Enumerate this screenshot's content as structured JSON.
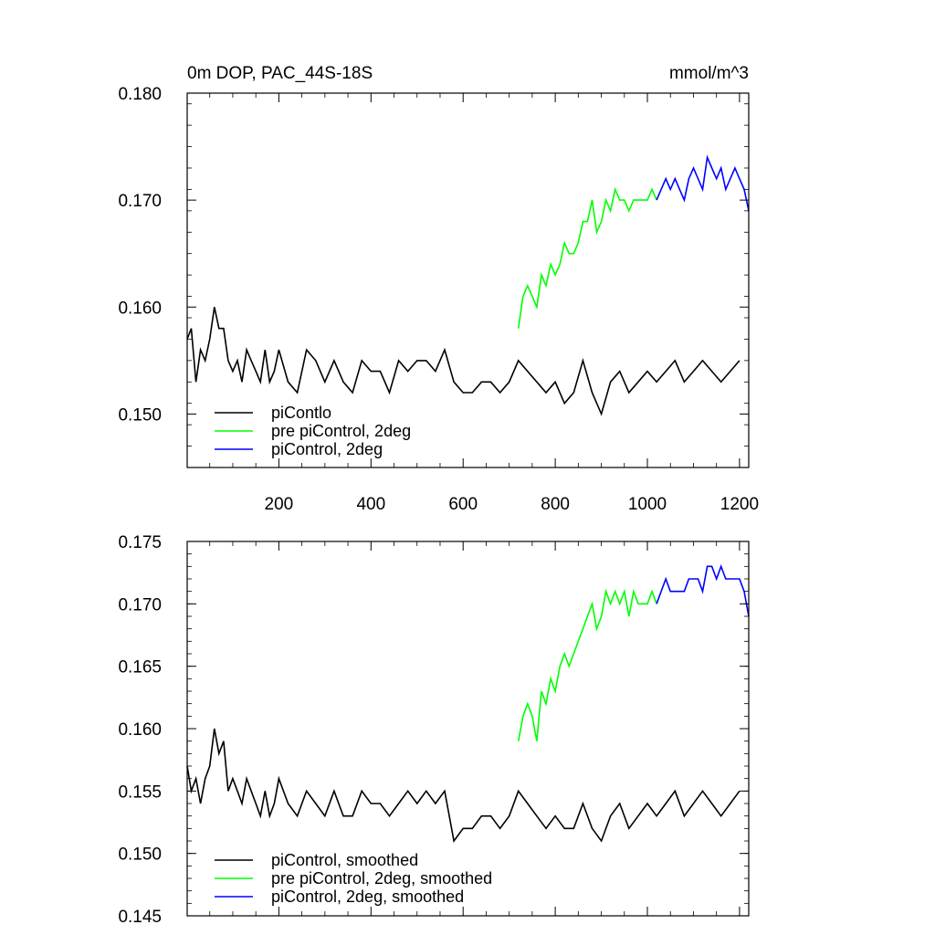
{
  "page": {
    "title_left": "0m DOP, PAC_44S-18S",
    "title_right": "mmol/m^3"
  },
  "colors": {
    "piControl": "#000000",
    "pre": "#00ff00",
    "twodeg": "#0000ff"
  },
  "chart_data": [
    {
      "type": "line",
      "title": "0m DOP, PAC_44S-18S",
      "units": "mmol/m^3",
      "xlim": [
        1,
        1220
      ],
      "ylim": [
        0.145,
        0.18
      ],
      "xticks": [
        200,
        400,
        600,
        800,
        1000,
        1200
      ],
      "xtick_labels": [
        "200",
        "400",
        "600",
        "800",
        "1000",
        "1200"
      ],
      "yticks": [
        0.15,
        0.16,
        0.17,
        0.18
      ],
      "ytick_labels": [
        "0.150",
        "0.160",
        "0.170",
        "0.180"
      ],
      "legend_position": "bottom-left",
      "series": [
        {
          "name": "piContlo",
          "color_key": "piControl",
          "x": [
            1,
            10,
            20,
            30,
            40,
            50,
            60,
            70,
            80,
            90,
            100,
            110,
            120,
            130,
            140,
            150,
            160,
            170,
            180,
            190,
            200,
            220,
            240,
            260,
            280,
            300,
            320,
            340,
            360,
            380,
            400,
            420,
            440,
            460,
            480,
            500,
            520,
            540,
            560,
            580,
            600,
            620,
            640,
            660,
            680,
            700,
            720,
            740,
            760,
            780,
            800,
            820,
            840,
            860,
            880,
            900,
            920,
            940,
            960,
            980,
            1000,
            1020,
            1040,
            1060,
            1080,
            1100,
            1120,
            1140,
            1160,
            1180,
            1200
          ],
          "y": [
            0.157,
            0.158,
            0.153,
            0.156,
            0.155,
            0.157,
            0.16,
            0.158,
            0.158,
            0.155,
            0.154,
            0.155,
            0.153,
            0.156,
            0.155,
            0.154,
            0.153,
            0.156,
            0.153,
            0.154,
            0.156,
            0.153,
            0.152,
            0.156,
            0.155,
            0.153,
            0.155,
            0.153,
            0.152,
            0.155,
            0.154,
            0.154,
            0.152,
            0.155,
            0.154,
            0.155,
            0.155,
            0.154,
            0.156,
            0.153,
            0.152,
            0.152,
            0.153,
            0.153,
            0.152,
            0.153,
            0.155,
            0.154,
            0.153,
            0.152,
            0.153,
            0.151,
            0.152,
            0.155,
            0.152,
            0.15,
            0.153,
            0.154,
            0.152,
            0.153,
            0.154,
            0.153,
            0.154,
            0.155,
            0.153,
            0.154,
            0.155,
            0.154,
            0.153,
            0.154,
            0.155
          ]
        },
        {
          "name": "pre piControl, 2deg",
          "color_key": "pre",
          "x": [
            720,
            730,
            740,
            750,
            760,
            770,
            780,
            790,
            800,
            810,
            820,
            830,
            840,
            850,
            860,
            870,
            880,
            890,
            900,
            910,
            920,
            930,
            940,
            950,
            960,
            970,
            980,
            990,
            1000,
            1010,
            1020
          ],
          "y": [
            0.158,
            0.161,
            0.162,
            0.161,
            0.16,
            0.163,
            0.162,
            0.164,
            0.163,
            0.164,
            0.166,
            0.165,
            0.165,
            0.166,
            0.168,
            0.168,
            0.17,
            0.167,
            0.168,
            0.17,
            0.169,
            0.171,
            0.17,
            0.17,
            0.169,
            0.17,
            0.17,
            0.17,
            0.17,
            0.171,
            0.17
          ]
        },
        {
          "name": "piControl, 2deg",
          "color_key": "twodeg",
          "x": [
            1020,
            1030,
            1040,
            1050,
            1060,
            1070,
            1080,
            1090,
            1100,
            1110,
            1120,
            1130,
            1140,
            1150,
            1160,
            1170,
            1180,
            1190,
            1200,
            1210,
            1220
          ],
          "y": [
            0.17,
            0.171,
            0.172,
            0.171,
            0.172,
            0.171,
            0.17,
            0.172,
            0.173,
            0.172,
            0.171,
            0.174,
            0.173,
            0.172,
            0.173,
            0.171,
            0.172,
            0.173,
            0.172,
            0.171,
            0.169
          ]
        }
      ]
    },
    {
      "type": "line",
      "xlim": [
        1,
        1220
      ],
      "ylim": [
        0.145,
        0.175
      ],
      "xticks": [
        200,
        400,
        600,
        800,
        1000,
        1200
      ],
      "yticks": [
        0.145,
        0.15,
        0.155,
        0.16,
        0.165,
        0.17,
        0.175
      ],
      "ytick_labels": [
        "0.145",
        "0.150",
        "0.155",
        "0.160",
        "0.165",
        "0.170",
        "0.175"
      ],
      "legend_position": "bottom-left",
      "series": [
        {
          "name": "piControl, smoothed",
          "color_key": "piControl",
          "x": [
            1,
            10,
            20,
            30,
            40,
            50,
            60,
            70,
            80,
            90,
            100,
            110,
            120,
            130,
            140,
            150,
            160,
            170,
            180,
            190,
            200,
            220,
            240,
            260,
            280,
            300,
            320,
            340,
            360,
            380,
            400,
            420,
            440,
            460,
            480,
            500,
            520,
            540,
            560,
            580,
            600,
            620,
            640,
            660,
            680,
            700,
            720,
            740,
            760,
            780,
            800,
            820,
            840,
            860,
            880,
            900,
            920,
            940,
            960,
            980,
            1000,
            1020,
            1040,
            1060,
            1080,
            1100,
            1120,
            1140,
            1160,
            1180,
            1200
          ],
          "y": [
            0.157,
            0.155,
            0.156,
            0.154,
            0.156,
            0.157,
            0.16,
            0.158,
            0.159,
            0.155,
            0.156,
            0.155,
            0.154,
            0.156,
            0.155,
            0.154,
            0.153,
            0.155,
            0.153,
            0.154,
            0.156,
            0.154,
            0.153,
            0.155,
            0.154,
            0.153,
            0.155,
            0.153,
            0.153,
            0.155,
            0.154,
            0.154,
            0.153,
            0.154,
            0.155,
            0.154,
            0.155,
            0.154,
            0.155,
            0.151,
            0.152,
            0.152,
            0.153,
            0.153,
            0.152,
            0.153,
            0.155,
            0.154,
            0.153,
            0.152,
            0.153,
            0.152,
            0.152,
            0.154,
            0.152,
            0.151,
            0.153,
            0.154,
            0.152,
            0.153,
            0.154,
            0.153,
            0.154,
            0.155,
            0.153,
            0.154,
            0.155,
            0.154,
            0.153,
            0.154,
            0.155
          ]
        },
        {
          "name": "pre piControl, 2deg, smoothed",
          "color_key": "pre",
          "x": [
            720,
            730,
            740,
            750,
            760,
            770,
            780,
            790,
            800,
            810,
            820,
            830,
            840,
            850,
            860,
            870,
            880,
            890,
            900,
            910,
            920,
            930,
            940,
            950,
            960,
            970,
            980,
            990,
            1000,
            1010,
            1020
          ],
          "y": [
            0.159,
            0.161,
            0.162,
            0.161,
            0.159,
            0.163,
            0.162,
            0.164,
            0.163,
            0.165,
            0.166,
            0.165,
            0.166,
            0.167,
            0.168,
            0.169,
            0.17,
            0.168,
            0.169,
            0.171,
            0.17,
            0.171,
            0.17,
            0.171,
            0.169,
            0.171,
            0.17,
            0.17,
            0.17,
            0.171,
            0.17
          ]
        },
        {
          "name": "piControl, 2deg, smoothed",
          "color_key": "twodeg",
          "x": [
            1020,
            1030,
            1040,
            1050,
            1060,
            1070,
            1080,
            1090,
            1100,
            1110,
            1120,
            1130,
            1140,
            1150,
            1160,
            1170,
            1180,
            1190,
            1200,
            1210,
            1220
          ],
          "y": [
            0.17,
            0.171,
            0.172,
            0.171,
            0.171,
            0.171,
            0.171,
            0.172,
            0.172,
            0.172,
            0.171,
            0.173,
            0.173,
            0.172,
            0.173,
            0.172,
            0.172,
            0.172,
            0.172,
            0.171,
            0.169
          ]
        }
      ]
    }
  ]
}
